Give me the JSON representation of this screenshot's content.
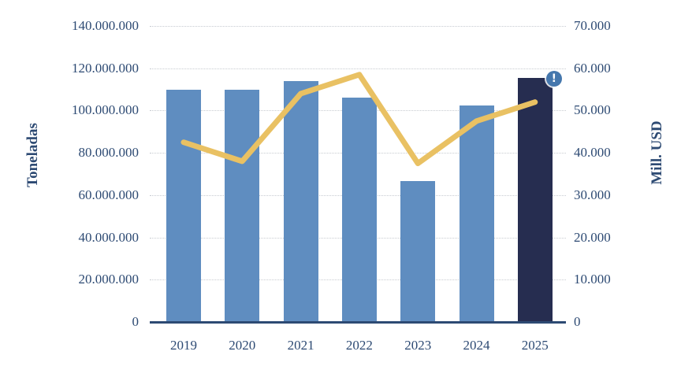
{
  "chart_data": {
    "type": "combo-bar-line",
    "categories": [
      "2019",
      "2020",
      "2021",
      "2022",
      "2023",
      "2024",
      "2025"
    ],
    "series": [
      {
        "name": "Toneladas",
        "type": "bar",
        "axis": "left",
        "values": [
          110000000,
          110000000,
          114000000,
          106000000,
          66500000,
          102500000,
          115500000
        ],
        "color": "#5f8dc0",
        "highlight": {
          "index": 6,
          "color": "#262d50"
        }
      },
      {
        "name": "Mill. USD",
        "type": "line",
        "axis": "right",
        "values": [
          42500,
          38000,
          54000,
          58500,
          37500,
          47500,
          52000
        ],
        "color": "#e9c163"
      }
    ],
    "left_axis": {
      "label": "Toneladas",
      "range": [
        0,
        140000000
      ],
      "tick_step": 20000000,
      "tick_labels_top_to_bottom": [
        "140.000.000",
        "120.000.000",
        "100.000.000",
        "80.000.000",
        "60.000.000",
        "40.000.000",
        "20.000.000",
        "0"
      ]
    },
    "right_axis": {
      "label": "Mill. USD",
      "range": [
        0,
        70000
      ],
      "tick_step": 10000,
      "tick_labels_top_to_bottom": [
        "70.000",
        "60.000",
        "50.000",
        "40.000",
        "30.000",
        "20.000",
        "10.000",
        "0"
      ]
    },
    "x_axis": {
      "labels": [
        "2019",
        "2020",
        "2021",
        "2022",
        "2023",
        "2024",
        "2025"
      ]
    },
    "grid": "horizontal-dotted",
    "legend_position": "beside-axis-titles",
    "annotations": [
      {
        "type": "info-badge",
        "category": "2025",
        "symbol": "!",
        "color": "#4577ad"
      }
    ],
    "text_color": "#2d4a73"
  }
}
